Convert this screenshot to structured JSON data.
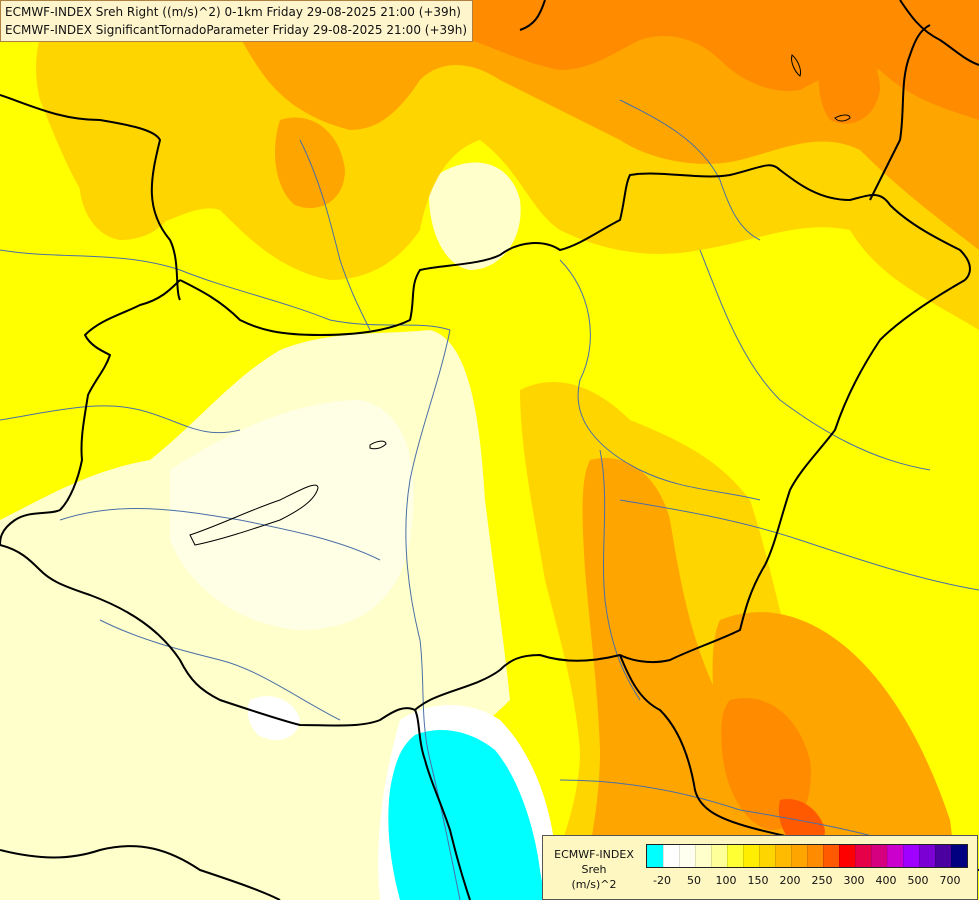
{
  "header": {
    "line1": "ECMWF-INDEX Sreh Right ((m/s)^2) 0-1km Friday 29-08-2025 21:00 (+39h)",
    "line2": "ECMWF-INDEX SignificantTornadoParameter Friday 29-08-2025 21:00 (+39h)"
  },
  "legend": {
    "title": "ECMWF-INDEX",
    "variable": "Sreh",
    "unit": "(m/s)^2",
    "tick_labels": [
      "-20",
      "50",
      "100",
      "150",
      "200",
      "250",
      "300",
      "400",
      "500",
      "700"
    ],
    "colors": [
      "#00ffff",
      "#ffffff",
      "#fffff0",
      "#ffffcc",
      "#ffff99",
      "#ffff33",
      "#ffee00",
      "#ffd500",
      "#ffbb00",
      "#ffa500",
      "#ff8c00",
      "#ff5a00",
      "#ff0000",
      "#e6004a",
      "#d4007f",
      "#cc00cc",
      "#a000ff",
      "#7a00d4",
      "#4b00a0",
      "#000080"
    ]
  },
  "colors": {
    "yellow": "#ffff00",
    "light_yellow": "#ffffcc",
    "gold": "#ffd500",
    "orange": "#ffa500",
    "dark_orange": "#ff8c00",
    "red_orange": "#ff5a00",
    "cyan": "#00ffff",
    "border_line": "#000000",
    "river_line": "#4a6fa5"
  }
}
